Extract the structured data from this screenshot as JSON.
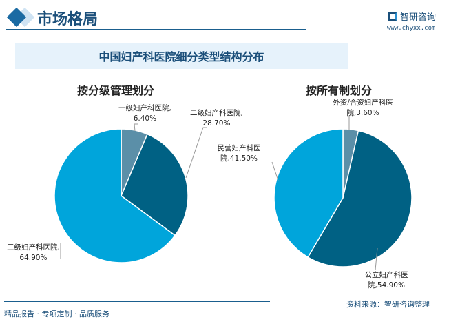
{
  "header": {
    "section_title": "市场格局",
    "logo_text": "智研咨询",
    "url": "www.chyxx.com"
  },
  "banner_title": "中国妇产科医院细分类型结构分布",
  "colors": {
    "gray_blue": "#5b8fa8",
    "dark_blue": "#006184",
    "light_blue": "#00a5db",
    "accent": "#1b4f7a"
  },
  "chart_data": [
    {
      "type": "pie",
      "title": "按分级管理划分",
      "slices": [
        {
          "label": "一级妇产科医院",
          "value": 6.4,
          "display": "6.40%",
          "color": "#5b8fa8"
        },
        {
          "label": "二级妇产科医院",
          "value": 28.7,
          "display": "28.70%",
          "color": "#006184"
        },
        {
          "label": "三级妇产科医院",
          "value": 64.9,
          "display": "64.90%",
          "color": "#00a5db"
        }
      ]
    },
    {
      "type": "pie",
      "title": "按所有制划分",
      "slices": [
        {
          "label": "外资/合资妇产科医院",
          "value": 3.6,
          "display": "3.60%",
          "color": "#5b8fa8"
        },
        {
          "label": "公立妇产科医院",
          "value": 54.9,
          "display": "54.90%",
          "color": "#006184"
        },
        {
          "label": "民营妇产科医院",
          "value": 41.5,
          "display": "41.50%",
          "color": "#00a5db"
        }
      ]
    }
  ],
  "footer": {
    "left": "精品报告 · 专项定制 · 品质服务",
    "source": "资料来源：智研咨询整理"
  }
}
